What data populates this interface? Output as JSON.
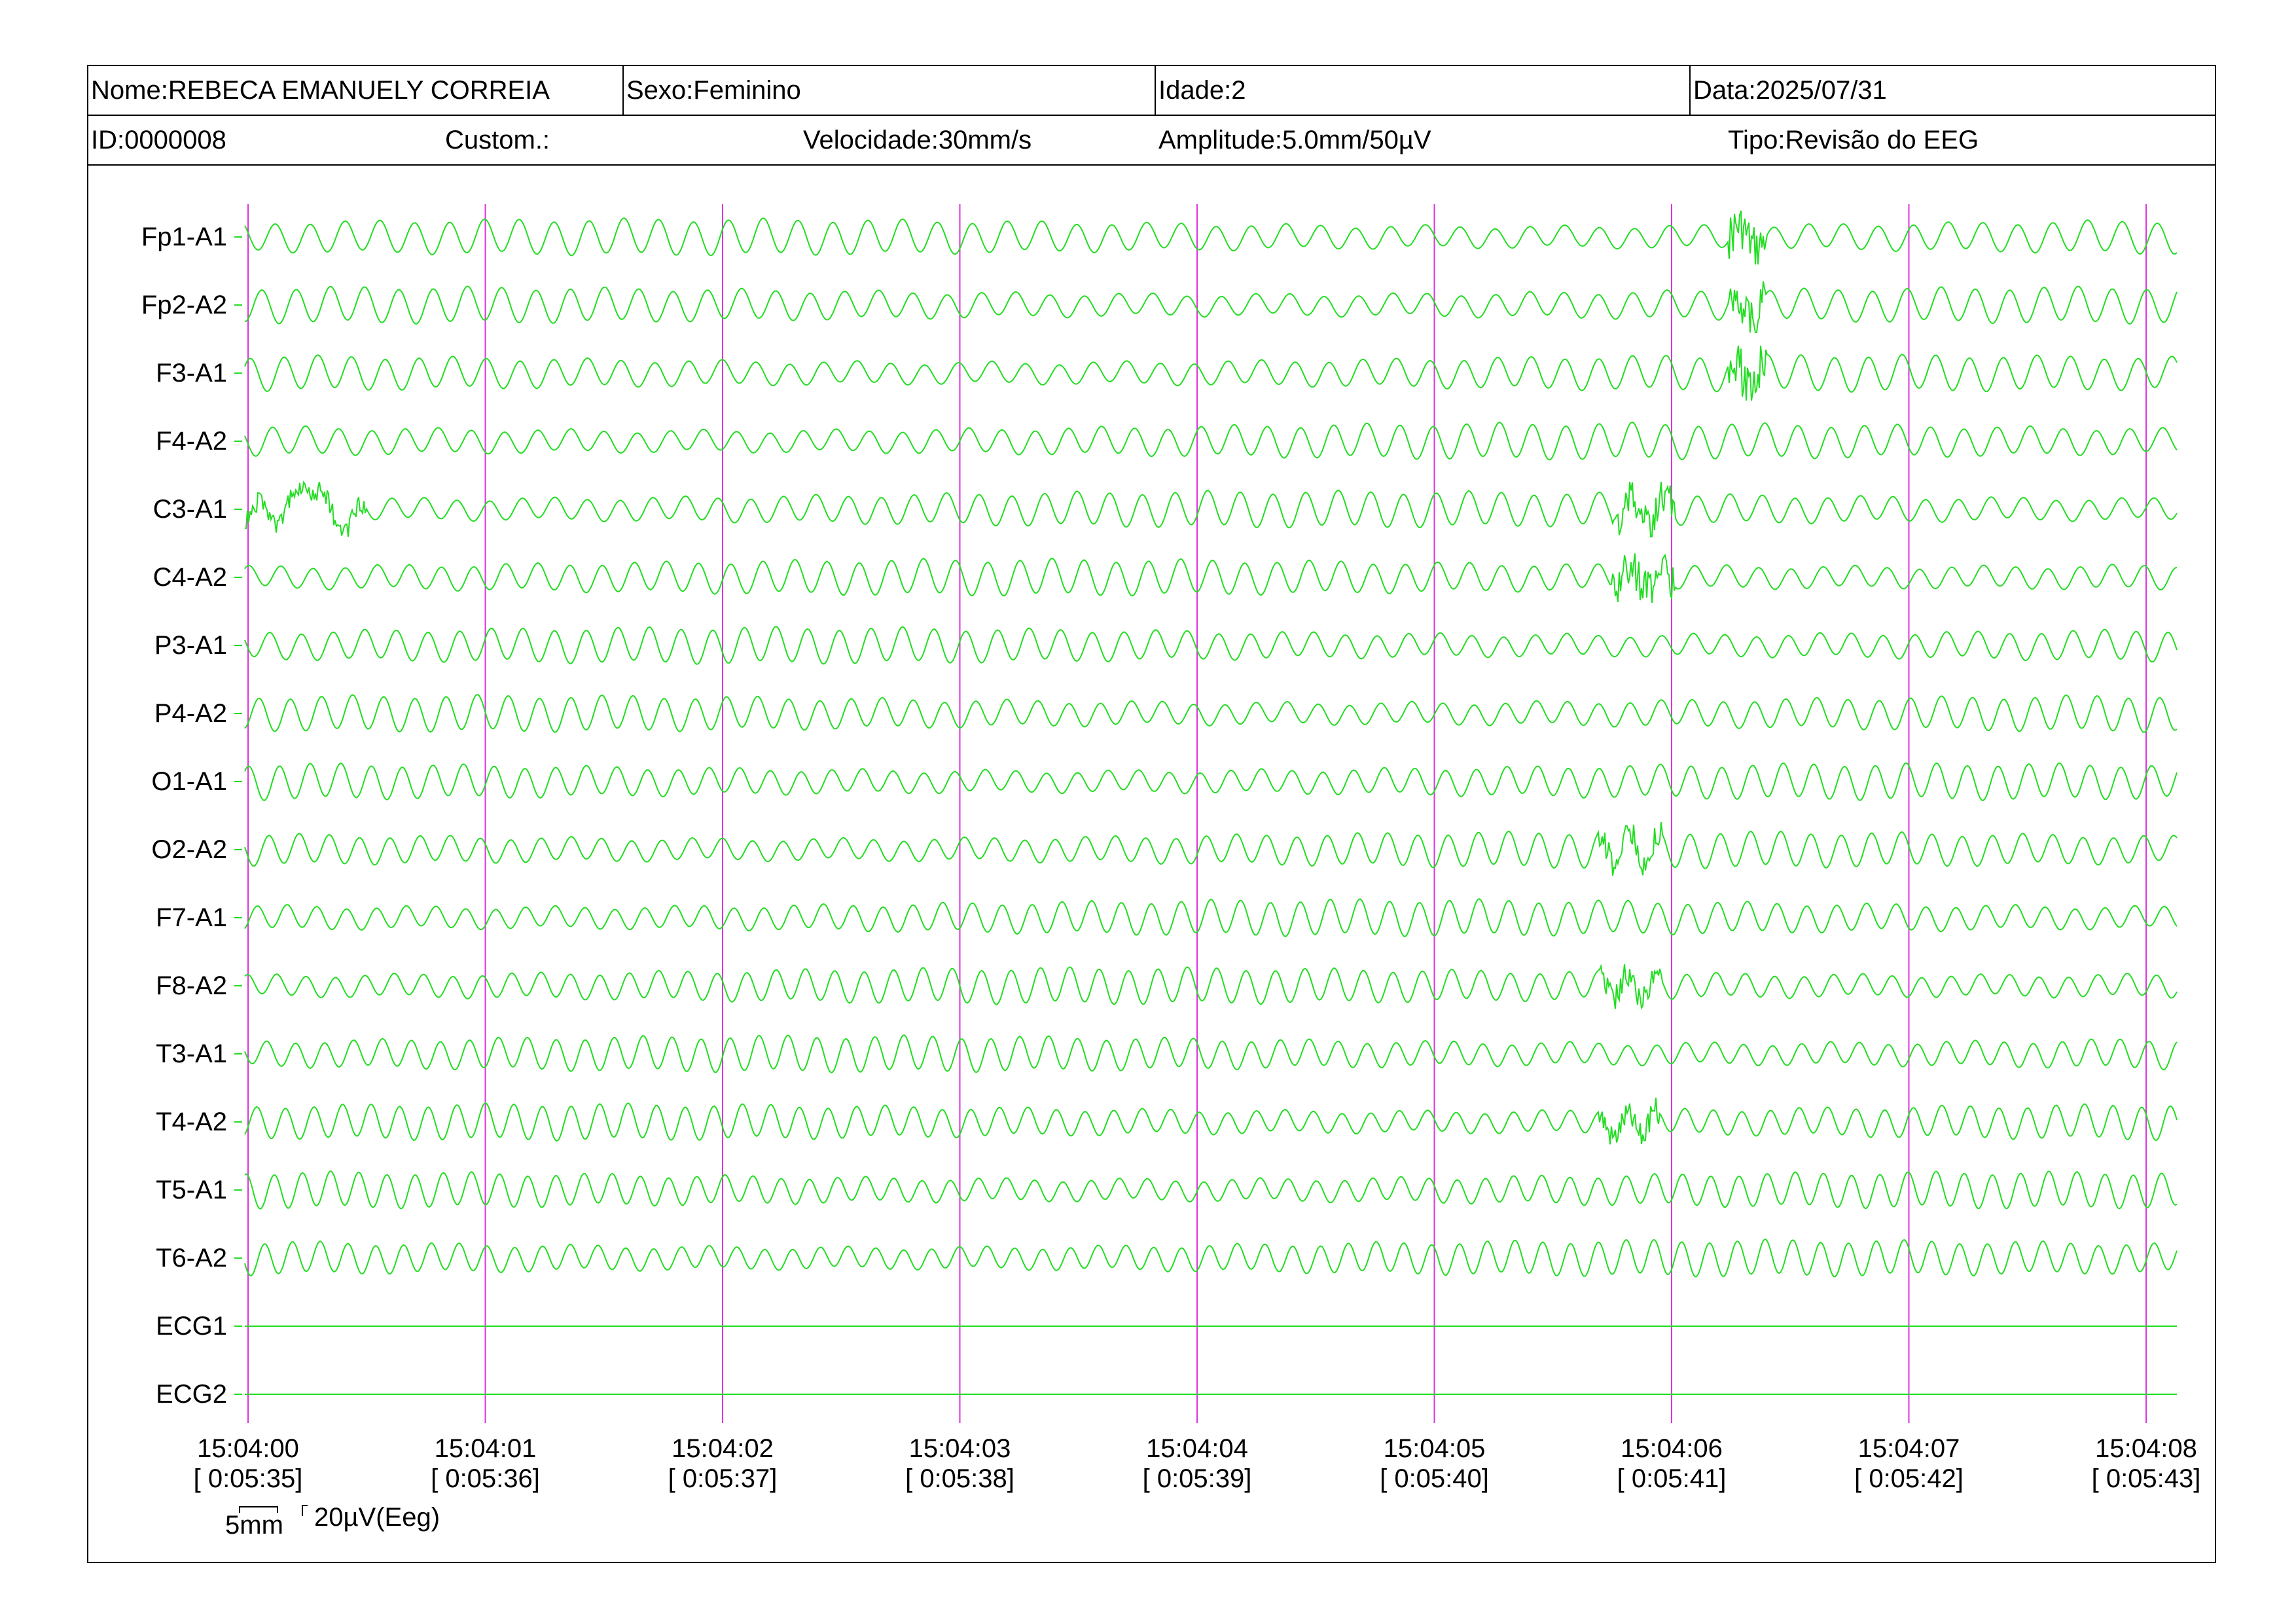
{
  "header": {
    "nome": "Nome:REBECA EMANUELY CORREIA",
    "sexo": "Sexo:Feminino",
    "idade": "Idade:2",
    "data": "Data:2025/07/31",
    "id": "ID:0000008",
    "custom": "Custom.:",
    "velocidade": "Velocidade:30mm/s",
    "amplitude": "Amplitude:5.0mm/50µV",
    "tipo": "Tipo:Revisão do EEG"
  },
  "channels": [
    "Fp1-A1",
    "Fp2-A2",
    "F3-A1",
    "F4-A2",
    "C3-A1",
    "C4-A2",
    "P3-A1",
    "P4-A2",
    "O1-A1",
    "O2-A2",
    "F7-A1",
    "F8-A2",
    "T3-A1",
    "T4-A2",
    "T5-A1",
    "T6-A2",
    "ECG1",
    "ECG2"
  ],
  "time_marks": [
    {
      "clock": "15:04:00",
      "elapsed": "[ 0:05:35]"
    },
    {
      "clock": "15:04:01",
      "elapsed": "[ 0:05:36]"
    },
    {
      "clock": "15:04:02",
      "elapsed": "[ 0:05:37]"
    },
    {
      "clock": "15:04:03",
      "elapsed": "[ 0:05:38]"
    },
    {
      "clock": "15:04:04",
      "elapsed": "[ 0:05:39]"
    },
    {
      "clock": "15:04:05",
      "elapsed": "[ 0:05:40]"
    },
    {
      "clock": "15:04:06",
      "elapsed": "[ 0:05:41]"
    },
    {
      "clock": "15:04:07",
      "elapsed": "[ 0:05:42]"
    },
    {
      "clock": "15:04:08",
      "elapsed": "[ 0:05:43]"
    }
  ],
  "scale": {
    "time": "5mm",
    "amplitude": "20µV(Eeg)"
  },
  "colors": {
    "trace": "#22dd22",
    "second_marker": "#dd33dd",
    "border": "#000000"
  }
}
